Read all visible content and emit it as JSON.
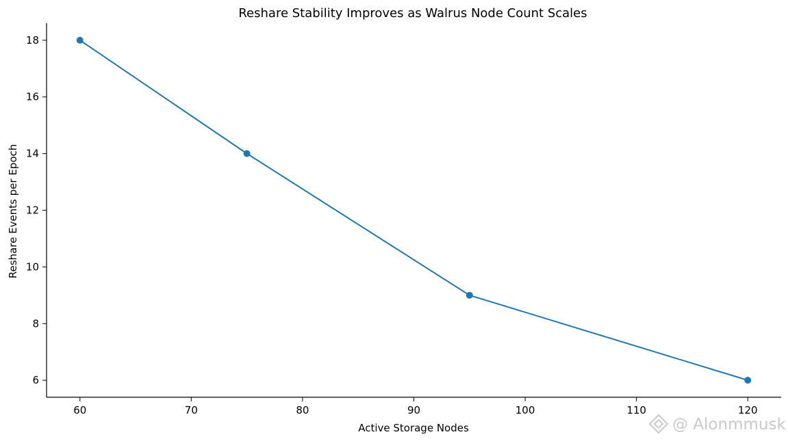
{
  "chart_data": {
    "type": "line",
    "title": "Reshare Stability Improves as Walrus Node Count Scales",
    "xlabel": "Active Storage Nodes",
    "ylabel": "Reshare Events per Epoch",
    "x": [
      60,
      75,
      95,
      120
    ],
    "series": [
      {
        "values": [
          18,
          14,
          9,
          6
        ]
      }
    ],
    "xlim": [
      57,
      123
    ],
    "ylim": [
      5.4,
      18.6
    ],
    "xticks": [
      60,
      70,
      80,
      90,
      100,
      110,
      120
    ],
    "yticks": [
      6,
      8,
      10,
      12,
      14,
      16,
      18
    ],
    "grid": false,
    "markers": true,
    "colors": {
      "series": "#1f77b4",
      "axis": "#000000"
    }
  },
  "watermark": {
    "text": "@ Alonmmusk",
    "icon": "binance-diamond-icon"
  }
}
